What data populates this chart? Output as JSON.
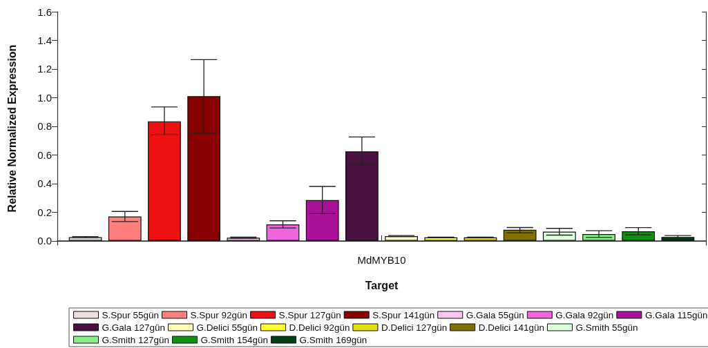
{
  "chart_data": {
    "type": "bar",
    "xlabel": "Target",
    "ylabel": "Relative Normalized Expression",
    "categories": [
      "MdMYB10"
    ],
    "ylim": [
      -0.03,
      1.6
    ],
    "yticks": [
      {
        "value": 0,
        "label": "0.0"
      },
      0.2,
      0.4,
      0.6,
      0.8,
      {
        "value": 1,
        "label": "1.0"
      },
      1.2,
      1.4,
      1.6
    ],
    "legend": "bottom",
    "series": [
      {
        "name": "S.Spur 55gün",
        "color": "#eedede",
        "values": [
          0.025
        ],
        "errors": [
          [
            0.021,
            0.03
          ]
        ]
      },
      {
        "name": "S.Spur 92gün",
        "color": "#ff7f7f",
        "values": [
          0.17
        ],
        "errors": [
          [
            0.135,
            0.205
          ]
        ]
      },
      {
        "name": "S.Spur 127gün",
        "color": "#ee1111",
        "values": [
          0.835
        ],
        "errors": [
          [
            0.74,
            0.935
          ]
        ]
      },
      {
        "name": "S.Spur 141gün",
        "color": "#880000",
        "values": [
          1.01
        ],
        "errors": [
          [
            0.755,
            1.265
          ]
        ]
      },
      {
        "name": "G.Gala 55gün",
        "color": "#f6c6f0",
        "values": [
          0.022
        ],
        "errors": [
          [
            0.018,
            0.026
          ]
        ]
      },
      {
        "name": "G.Gala 92gün",
        "color": "#ee66dd",
        "values": [
          0.115
        ],
        "errors": [
          [
            0.09,
            0.14
          ]
        ]
      },
      {
        "name": "G.Gala 115gün",
        "color": "#aa1199",
        "values": [
          0.285
        ],
        "errors": [
          [
            0.19,
            0.38
          ]
        ]
      },
      {
        "name": "G.Gala 127gün",
        "color": "#4a1040",
        "values": [
          0.625
        ],
        "errors": [
          [
            0.53,
            0.725
          ]
        ]
      },
      {
        "name": "G.Delici 55gün",
        "color": "#ffffbb",
        "values": [
          0.033
        ],
        "errors": [
          [
            0.03,
            0.037
          ]
        ]
      },
      {
        "name": "D.Delici 92gün",
        "color": "#ffff30",
        "values": [
          0.024
        ],
        "errors": [
          [
            0.022,
            0.026
          ]
        ]
      },
      {
        "name": "D.Delici 127gün",
        "color": "#e6e000",
        "values": [
          0.024
        ],
        "errors": [
          [
            0.022,
            0.026
          ]
        ]
      },
      {
        "name": "D.Delici 141gün",
        "color": "#807000",
        "values": [
          0.077
        ],
        "errors": [
          [
            0.056,
            0.093
          ]
        ]
      },
      {
        "name": "G.Smith 55gün",
        "color": "#ddffdd",
        "values": [
          0.064
        ],
        "errors": [
          [
            0.04,
            0.087
          ]
        ]
      },
      {
        "name": "G.Smith 127gün",
        "color": "#88ee88",
        "values": [
          0.047
        ],
        "errors": [
          [
            0.024,
            0.071
          ]
        ]
      },
      {
        "name": "G.Smith 154gün",
        "color": "#109010",
        "values": [
          0.066
        ],
        "errors": [
          [
            0.042,
            0.092
          ]
        ]
      },
      {
        "name": "G.Smith 169gün",
        "color": "#004010",
        "values": [
          0.027
        ],
        "errors": [
          [
            0.015,
            0.037
          ]
        ]
      }
    ]
  }
}
